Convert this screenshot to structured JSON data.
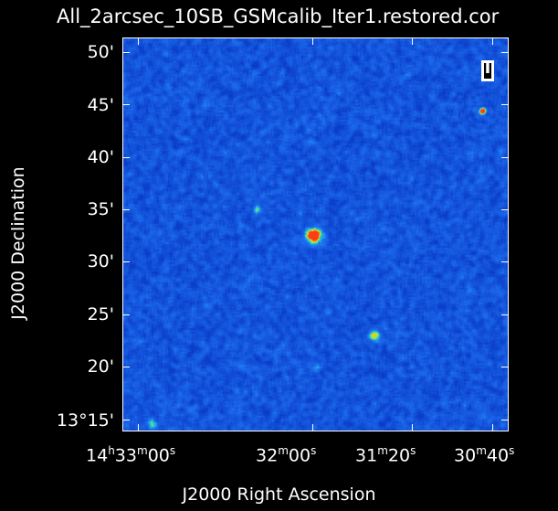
{
  "title": "All_2arcsec_10SB_GSMcalib_Iter1.restored.cor",
  "stokes": "I",
  "axes": {
    "y_title": "J2000 Declination",
    "x_title": "J2000 Right Ascension",
    "y_ticks": [
      "50'",
      "45'",
      "40'",
      "35'",
      "30'",
      "25'",
      "20'",
      "13°15'"
    ],
    "x_ticks": [
      {
        "h": "14",
        "hs": "h",
        "m": "33",
        "ms": "m",
        "s": "00",
        "ss": "s"
      },
      {
        "h": "",
        "hs": "",
        "m": "32",
        "ms": "m",
        "s": "00",
        "ss": "s"
      },
      {
        "h": "",
        "hs": "",
        "m": "31",
        "ms": "m",
        "s": "20",
        "ss": "s"
      },
      {
        "h": "",
        "hs": "",
        "m": "30",
        "ms": "m",
        "s": "40",
        "ss": "s"
      }
    ]
  },
  "colors": {
    "background": "#000000",
    "noise_base": "#2a6ef0",
    "source": "#ff3300"
  }
}
